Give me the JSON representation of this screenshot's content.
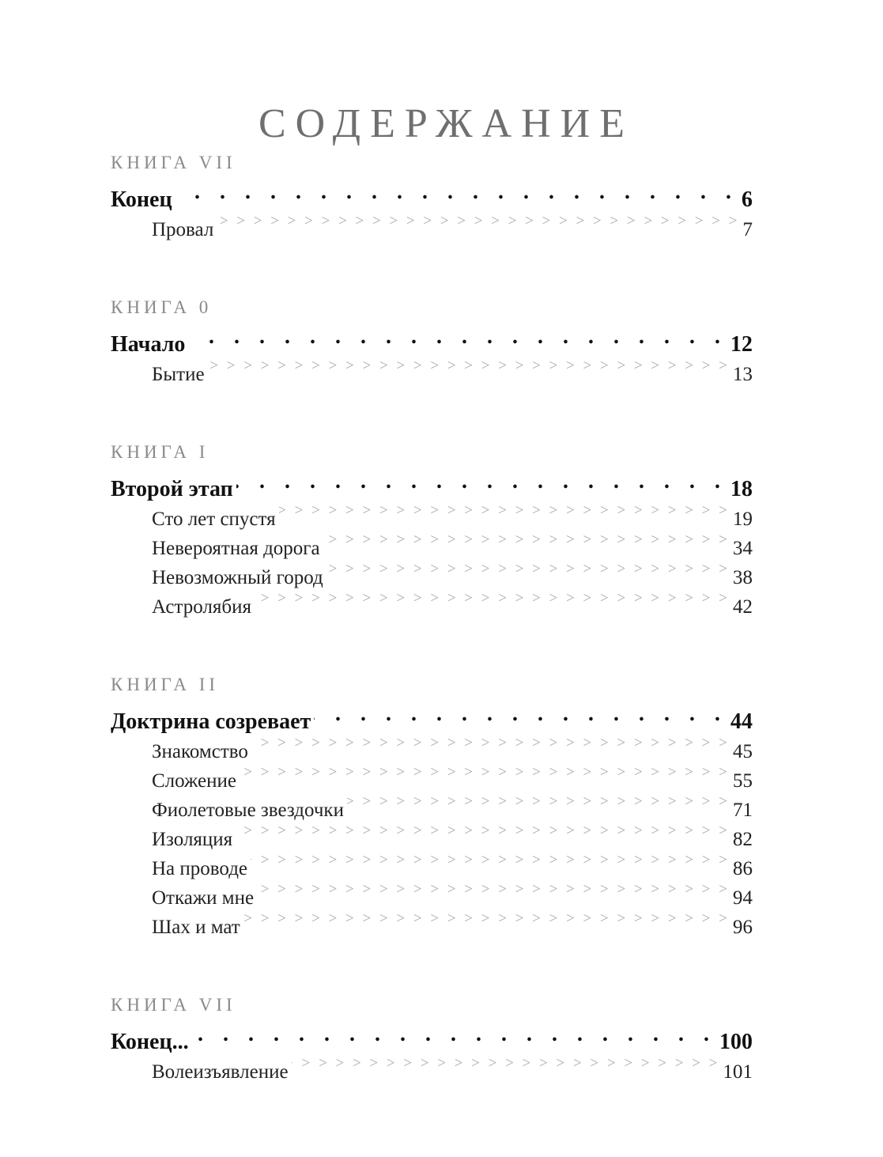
{
  "title": "СОДЕРЖАНИЕ",
  "sections": [
    {
      "label": "КНИГА VII",
      "main": {
        "title": "Конец",
        "page": "6"
      },
      "subs": [
        {
          "title": "Провал",
          "page": "7"
        }
      ]
    },
    {
      "label": "КНИГА 0",
      "main": {
        "title": "Начало",
        "page": "12"
      },
      "subs": [
        {
          "title": "Бытие",
          "page": "13"
        }
      ]
    },
    {
      "label": "КНИГА I",
      "main": {
        "title": "Второй этап",
        "page": "18"
      },
      "subs": [
        {
          "title": "Сто лет спустя",
          "page": "19"
        },
        {
          "title": "Невероятная дорога",
          "page": "34"
        },
        {
          "title": "Невозможный город",
          "page": "38"
        },
        {
          "title": "Астролябия",
          "page": "42"
        }
      ]
    },
    {
      "label": "КНИГА II",
      "main": {
        "title": "Доктрина созревает",
        "page": "44"
      },
      "subs": [
        {
          "title": "Знакомство",
          "page": "45"
        },
        {
          "title": "Сложение",
          "page": "55"
        },
        {
          "title": "Фиолетовые звездочки",
          "page": "71"
        },
        {
          "title": "Изоляция",
          "page": "82"
        },
        {
          "title": "На проводе",
          "page": "86"
        },
        {
          "title": "Откажи мне",
          "page": "94"
        },
        {
          "title": "Шах и мат",
          "page": "96"
        }
      ]
    },
    {
      "label": "КНИГА VII",
      "main": {
        "title": "Конец...",
        "page": "100"
      },
      "subs": [
        {
          "title": "Волеизъявление",
          "page": "101"
        }
      ]
    }
  ]
}
